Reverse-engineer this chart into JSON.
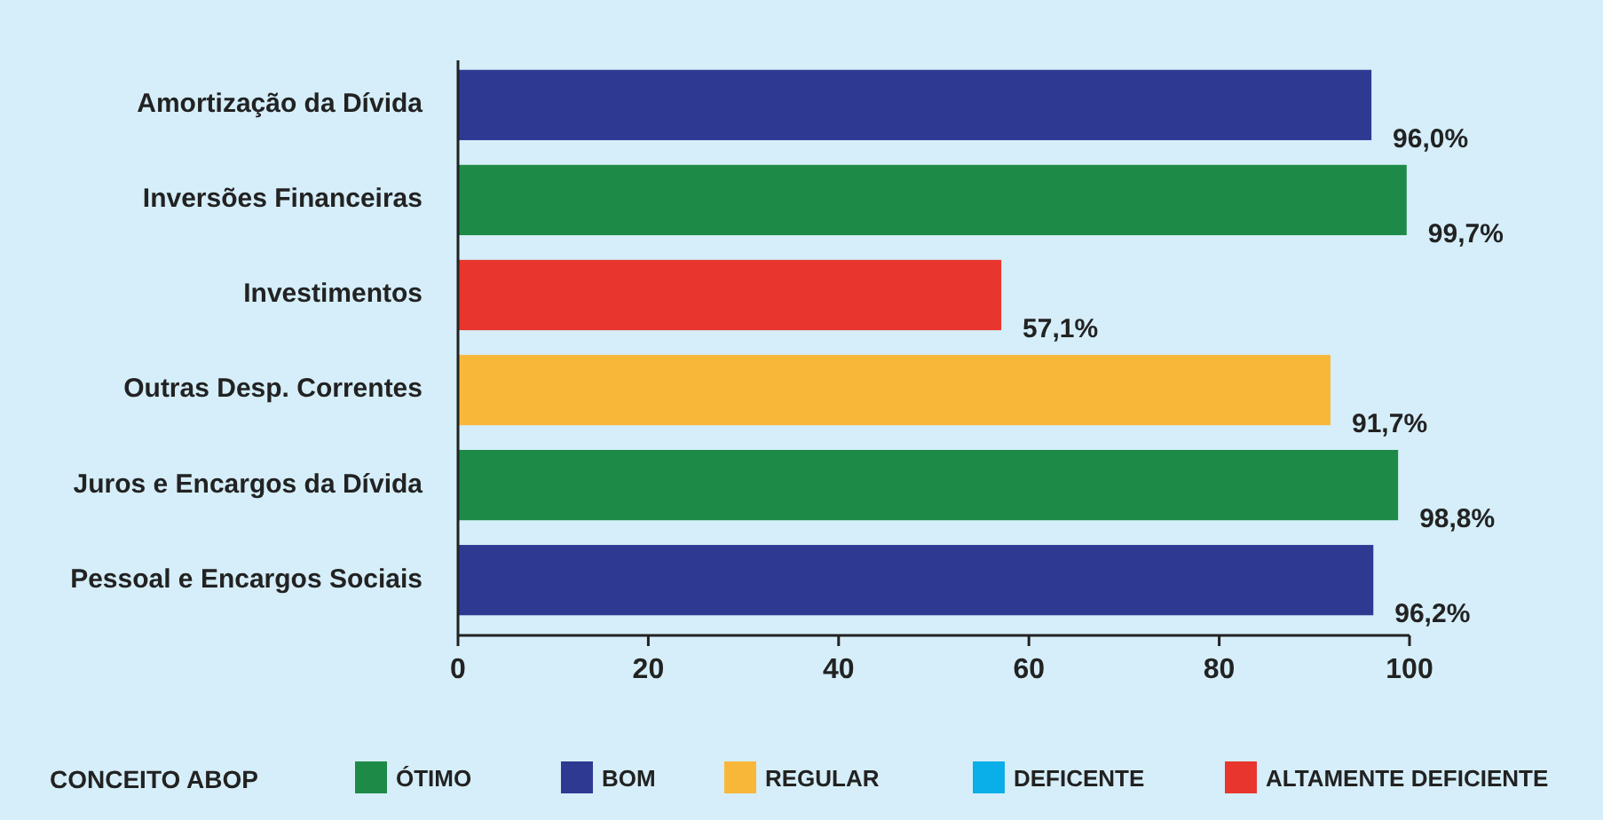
{
  "chart_data": {
    "type": "bar",
    "orientation": "horizontal",
    "stacked": true,
    "categories": [
      "Amortização da Dívida",
      "Inversões Financeiras",
      "Investimentos",
      "Outras Desp. Correntes",
      "Juros e Encargos da Dívida",
      "Pessoal e Encargos Sociais"
    ],
    "series": [
      {
        "name": "ÓTIMO",
        "color": "#1e8a47",
        "values": [
          null,
          99.7,
          null,
          null,
          98.8,
          null
        ]
      },
      {
        "name": "BOM",
        "color": "#2c3a92",
        "values": [
          96.0,
          null,
          null,
          null,
          null,
          96.2
        ]
      },
      {
        "name": "REGULAR",
        "color": "#f9b73a",
        "values": [
          null,
          null,
          null,
          91.7,
          null,
          null
        ]
      },
      {
        "name": "DEFICENTE",
        "color": "#0aaee8",
        "values": [
          null,
          null,
          null,
          null,
          null,
          null
        ]
      },
      {
        "name": "ALTAMENTE DEFICIENTE",
        "color": "#e8362e",
        "values": [
          null,
          null,
          57.1,
          null,
          null,
          null
        ]
      }
    ],
    "value_labels": [
      "96,0%",
      "99,7%",
      "57,1%",
      "91,7%",
      "98,8%",
      "96,2%"
    ],
    "xlim": [
      0,
      100
    ],
    "xticks": [
      0,
      20,
      40,
      60,
      80,
      100
    ],
    "legend": "bottom",
    "legend_title": "CONCEITO ABOP",
    "grid": false
  }
}
